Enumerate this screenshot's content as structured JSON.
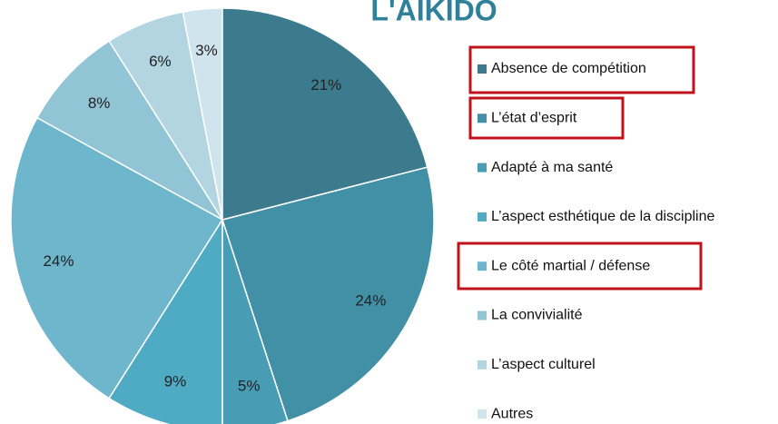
{
  "chart_data": {
    "type": "pie",
    "title": "L'AIKIDO",
    "categories": [
      "Absence de compétition",
      "L’état d’esprit",
      "Adapté à ma santé",
      "L’aspect esthétique  de la discipline",
      "Le côté martial / défense",
      "La convivialité",
      "L’aspect culturel",
      "Autres"
    ],
    "values": [
      21,
      24,
      5,
      9,
      24,
      8,
      6,
      3
    ],
    "value_labels": [
      "21%",
      "24%",
      "5%",
      "9%",
      "24%",
      "8%",
      "6%",
      "3%"
    ],
    "colors": [
      "#3b7b8d",
      "#4290a6",
      "#489db5",
      "#4faac4",
      "#6db6cc",
      "#91c5d6",
      "#b2d5e1",
      "#cfe4ec"
    ],
    "legend": "right"
  }
}
